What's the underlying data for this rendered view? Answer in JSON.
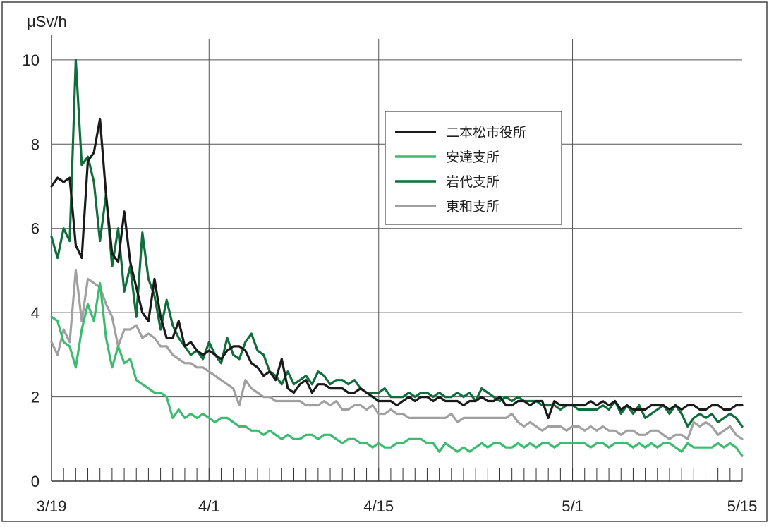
{
  "chart_data": {
    "type": "line",
    "title": "",
    "xlabel": "",
    "ylabel": "μSv/h",
    "ylim": [
      0,
      10.5
    ],
    "yticks": [
      0,
      2,
      4,
      6,
      8,
      10
    ],
    "x_start_label": "3/19",
    "x_tick_labels": [
      "3/19",
      "4/1",
      "4/15",
      "5/1",
      "5/15"
    ],
    "x_tick_day_index": [
      0,
      13,
      27,
      43,
      57
    ],
    "samples_per_day": 2,
    "grid": true,
    "legend_position": "top-center",
    "series": [
      {
        "name": "二本松市役所",
        "color": "#1a1a1a",
        "values": [
          7.0,
          7.2,
          7.1,
          7.2,
          5.6,
          5.3,
          7.6,
          7.8,
          8.6,
          6.8,
          5.4,
          5.2,
          6.4,
          5.2,
          4.6,
          4.0,
          3.8,
          4.8,
          3.9,
          3.4,
          3.4,
          3.8,
          3.2,
          3.3,
          3.1,
          3.0,
          3.1,
          3.0,
          2.9,
          3.1,
          3.2,
          3.2,
          3.1,
          2.8,
          2.7,
          2.5,
          2.6,
          2.4,
          2.9,
          2.2,
          2.1,
          2.3,
          2.4,
          2.1,
          2.3,
          2.3,
          2.2,
          2.2,
          2.2,
          2.1,
          2.1,
          2.2,
          2.1,
          2.0,
          1.9,
          1.9,
          1.9,
          1.8,
          1.9,
          2.0,
          1.9,
          2.0,
          2.0,
          1.9,
          2.0,
          1.9,
          1.9,
          1.9,
          1.8,
          1.9,
          1.9,
          2.0,
          1.9,
          1.9,
          2.0,
          1.8,
          1.8,
          1.9,
          1.9,
          1.8,
          1.9,
          1.9,
          1.5,
          1.9,
          1.8,
          1.8,
          1.8,
          1.8,
          1.8,
          1.9,
          1.8,
          1.9,
          1.8,
          1.9,
          1.7,
          1.8,
          1.7,
          1.7,
          1.7,
          1.8,
          1.8,
          1.8,
          1.7,
          1.8,
          1.7,
          1.8,
          1.8,
          1.7,
          1.7,
          1.8,
          1.8,
          1.7,
          1.7,
          1.8,
          1.8
        ]
      },
      {
        "name": "安達支所",
        "color": "#3dbb70",
        "values": [
          3.9,
          3.8,
          3.3,
          3.2,
          2.7,
          3.6,
          4.2,
          3.8,
          4.7,
          3.4,
          2.7,
          3.2,
          2.8,
          2.9,
          2.4,
          2.3,
          2.2,
          2.1,
          2.1,
          2.0,
          1.5,
          1.7,
          1.5,
          1.6,
          1.5,
          1.6,
          1.5,
          1.4,
          1.5,
          1.5,
          1.4,
          1.3,
          1.3,
          1.2,
          1.2,
          1.1,
          1.2,
          1.1,
          1.0,
          1.1,
          1.0,
          1.0,
          1.1,
          1.1,
          1.0,
          1.1,
          1.1,
          1.0,
          0.9,
          1.0,
          1.0,
          0.9,
          0.9,
          0.8,
          0.9,
          0.8,
          0.8,
          0.9,
          0.9,
          1.0,
          1.0,
          1.0,
          0.9,
          0.9,
          0.7,
          0.9,
          0.8,
          0.7,
          0.8,
          0.7,
          0.8,
          0.9,
          0.8,
          0.9,
          0.9,
          0.8,
          0.8,
          0.9,
          0.8,
          0.9,
          0.8,
          0.9,
          0.9,
          0.8,
          0.9,
          0.9,
          0.9,
          0.9,
          0.9,
          0.8,
          0.9,
          0.9,
          0.8,
          0.9,
          0.9,
          0.9,
          0.8,
          0.9,
          0.8,
          0.9,
          0.8,
          0.9,
          0.9,
          0.8,
          0.7,
          0.9,
          0.8,
          0.8,
          0.8,
          0.8,
          0.9,
          0.8,
          0.9,
          0.8,
          0.6
        ]
      },
      {
        "name": "岩代支所",
        "color": "#0f6e3c",
        "values": [
          5.8,
          5.3,
          6.0,
          5.7,
          10.0,
          7.5,
          7.7,
          7.1,
          5.7,
          6.8,
          5.1,
          6.0,
          4.5,
          5.1,
          3.9,
          5.9,
          4.8,
          4.4,
          3.6,
          4.3,
          3.7,
          3.4,
          3.2,
          3.0,
          3.1,
          2.9,
          3.3,
          3.0,
          2.8,
          3.4,
          3.0,
          2.9,
          3.3,
          3.5,
          3.1,
          3.0,
          2.6,
          2.5,
          2.3,
          2.6,
          2.3,
          2.4,
          2.5,
          2.3,
          2.6,
          2.5,
          2.3,
          2.4,
          2.4,
          2.3,
          2.4,
          2.2,
          2.1,
          2.1,
          2.1,
          2.2,
          2.0,
          2.0,
          2.0,
          2.1,
          2.0,
          2.1,
          2.1,
          2.0,
          2.1,
          2.0,
          2.0,
          2.1,
          2.0,
          2.1,
          1.9,
          2.2,
          2.1,
          2.0,
          1.9,
          2.0,
          1.9,
          2.0,
          1.9,
          1.9,
          1.9,
          1.8,
          1.8,
          1.8,
          1.7,
          1.8,
          1.8,
          1.7,
          1.7,
          1.7,
          1.7,
          1.8,
          1.7,
          1.9,
          1.6,
          1.8,
          1.6,
          1.8,
          1.5,
          1.6,
          1.7,
          1.8,
          1.6,
          1.8,
          1.6,
          1.3,
          1.5,
          1.6,
          1.5,
          1.6,
          1.4,
          1.5,
          1.6,
          1.5,
          1.3
        ]
      },
      {
        "name": "東和支所",
        "color": "#a0a0a0",
        "values": [
          3.3,
          3.0,
          3.6,
          3.3,
          5.0,
          3.8,
          4.8,
          4.7,
          4.6,
          4.2,
          3.9,
          3.2,
          3.6,
          3.6,
          3.7,
          3.4,
          3.5,
          3.4,
          3.2,
          3.2,
          3.0,
          2.9,
          2.8,
          2.8,
          2.7,
          2.7,
          2.6,
          2.5,
          2.4,
          2.3,
          2.2,
          1.8,
          2.4,
          2.2,
          2.1,
          2.0,
          2.0,
          1.9,
          1.9,
          1.9,
          1.9,
          1.9,
          1.8,
          1.8,
          1.8,
          1.9,
          1.8,
          1.9,
          1.7,
          1.7,
          1.8,
          1.8,
          1.7,
          1.8,
          1.6,
          1.6,
          1.7,
          1.6,
          1.6,
          1.5,
          1.5,
          1.5,
          1.5,
          1.5,
          1.5,
          1.5,
          1.6,
          1.4,
          1.5,
          1.5,
          1.5,
          1.5,
          1.5,
          1.5,
          1.5,
          1.5,
          1.6,
          1.4,
          1.3,
          1.4,
          1.3,
          1.2,
          1.3,
          1.3,
          1.3,
          1.2,
          1.3,
          1.3,
          1.2,
          1.3,
          1.2,
          1.3,
          1.2,
          1.2,
          1.1,
          1.2,
          1.2,
          1.1,
          1.1,
          1.2,
          1.2,
          1.1,
          1.0,
          1.1,
          1.1,
          1.0,
          1.4,
          1.3,
          1.4,
          1.3,
          1.1,
          1.2,
          1.3,
          1.1,
          1.0
        ]
      }
    ]
  }
}
